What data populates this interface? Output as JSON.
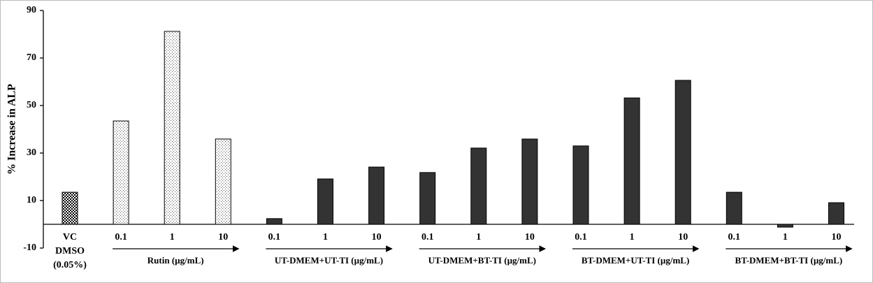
{
  "chart_data": {
    "type": "bar",
    "ylabel": "% Increase in ALP",
    "ylim": [
      -10,
      90
    ],
    "yticks": [
      -10,
      10,
      30,
      50,
      70,
      90
    ],
    "control": {
      "labels": [
        "VC",
        "DMSO",
        "(0.05%)"
      ],
      "value": 13.5,
      "pattern": "checker"
    },
    "groups": [
      {
        "name": "Rutin (µg/mL)",
        "pattern": "dots",
        "categories": [
          "0.1",
          "1",
          "10"
        ],
        "values": [
          43.5,
          81.2,
          35.9
        ]
      },
      {
        "name": "UT-DMEM+UT-TI  (µg/mL)",
        "color": "#333333",
        "categories": [
          "0.1",
          "1",
          "10"
        ],
        "values": [
          2.4,
          19.1,
          24.1
        ]
      },
      {
        "name": "UT-DMEM+BT-TI  (µg/mL)",
        "color": "#333333",
        "categories": [
          "0.1",
          "1",
          "10"
        ],
        "values": [
          21.8,
          32.1,
          35.9
        ]
      },
      {
        "name": "BT-DMEM+UT-TI  (µg/mL)",
        "color": "#333333",
        "categories": [
          "0.1",
          "1",
          "10"
        ],
        "values": [
          33.0,
          53.2,
          60.6
        ]
      },
      {
        "name": "BT-DMEM+BT-TI  (µg/mL)",
        "color": "#333333",
        "categories": [
          "0.1",
          "1",
          "10"
        ],
        "values": [
          13.5,
          -1.2,
          9.1
        ]
      }
    ]
  }
}
